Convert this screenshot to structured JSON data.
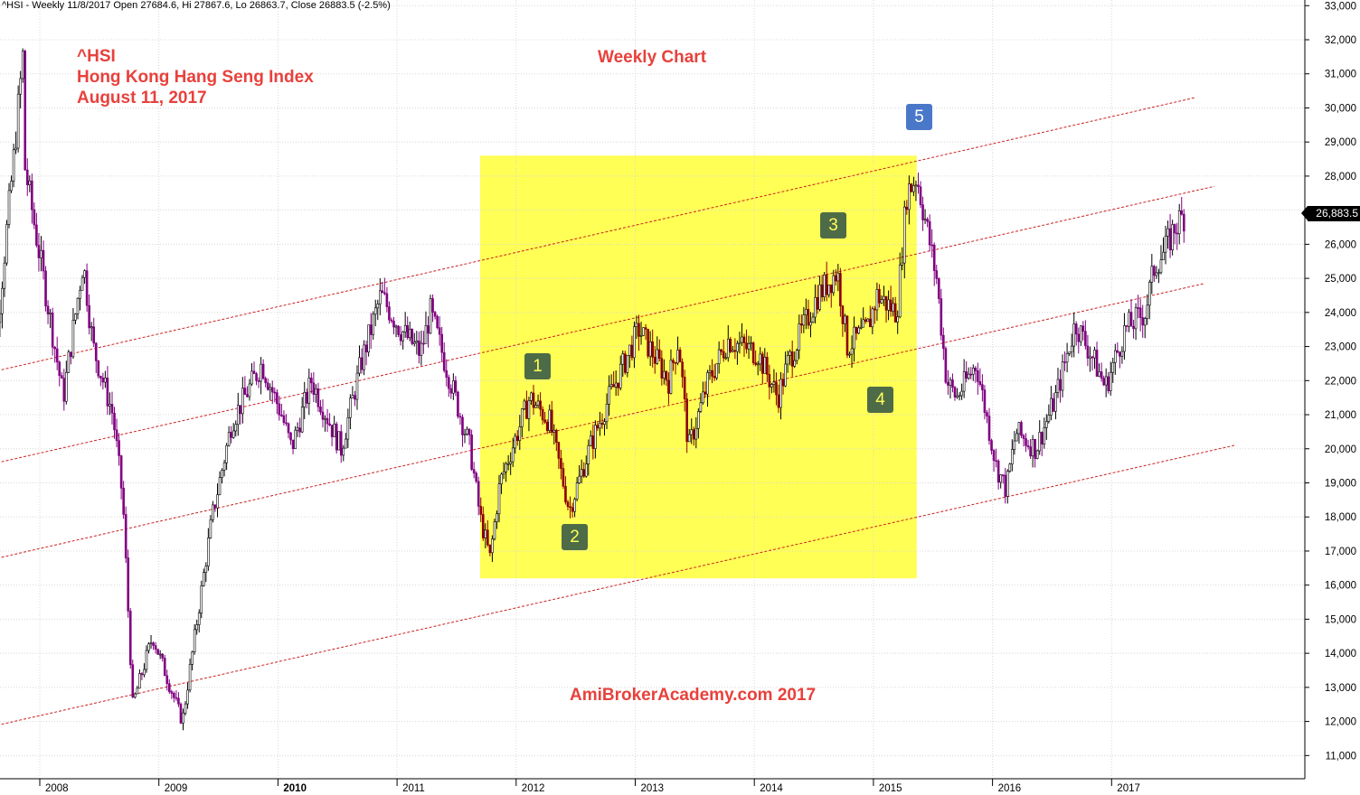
{
  "header": "^HSI - Weekly 11/8/2017 Open 27684.6, Hi 27867.6, Lo 26863.7, Close 26883.5 (-2.5%)",
  "annotations": {
    "ticker": "^HSI",
    "name": "Hong Kong Hang Seng Index",
    "date": "August 11, 2017",
    "chart_type": "Weekly Chart",
    "watermark": "AmiBrokerAcademy.com  2017"
  },
  "wave_labels": [
    "1",
    "2",
    "3",
    "4",
    "5"
  ],
  "last_price_label": "26,883.5",
  "colors": {
    "candle_down": "#800080",
    "candle_down_in_box": "#8b0000",
    "candle_up": "#000000",
    "highlight_box": "#ffff55",
    "channel_lines": "#cc2222",
    "annotation_text": "#e8413c",
    "wave_label_green": "#4e6b48",
    "wave_label_blue": "#4a78c9",
    "grid": "#d8d8d8"
  },
  "chart_data": {
    "type": "candlestick",
    "title": "",
    "xlabel": "",
    "ylabel": "",
    "x_ticks": [
      "2008",
      "2009",
      "2010",
      "2011",
      "2012",
      "2013",
      "2014",
      "2015",
      "2016",
      "2017"
    ],
    "y_ticks": [
      "33,000",
      "32,000",
      "31,000",
      "30,000",
      "29,000",
      "28,000",
      "27,000",
      "26,000",
      "25,000",
      "24,000",
      "23,000",
      "22,000",
      "21,000",
      "20,000",
      "19,000",
      "18,000",
      "17,000",
      "16,000",
      "15,000",
      "14,000",
      "13,000",
      "12,000",
      "11,000"
    ],
    "ylim": [
      10300,
      33000
    ],
    "x_range": [
      "2007-07",
      "2018-04"
    ],
    "grid": true,
    "y_axis_side": "right",
    "close_path": [
      [
        "2007-07",
        23500
      ],
      [
        "2007-08",
        22500
      ],
      [
        "2007-10",
        28500
      ],
      [
        "2007-10-30",
        31600
      ],
      [
        "2007-11",
        28500
      ],
      [
        "2008-01",
        25000
      ],
      [
        "2008-03",
        21500
      ],
      [
        "2008-05",
        25500
      ],
      [
        "2008-06",
        23000
      ],
      [
        "2008-08",
        21000
      ],
      [
        "2008-09",
        18500
      ],
      [
        "2008-10",
        12500
      ],
      [
        "2008-11",
        13500
      ],
      [
        "2008-12",
        14500
      ],
      [
        "2009-03",
        12000
      ],
      [
        "2009-06",
        18000
      ],
      [
        "2009-08",
        20800
      ],
      [
        "2009-11",
        22500
      ],
      [
        "2010-01",
        21000
      ],
      [
        "2010-02",
        20000
      ],
      [
        "2010-04",
        22000
      ],
      [
        "2010-07",
        20000
      ],
      [
        "2010-09",
        22500
      ],
      [
        "2010-11",
        24500
      ],
      [
        "2011-01",
        23500
      ],
      [
        "2011-03",
        22800
      ],
      [
        "2011-04",
        24000
      ],
      [
        "2011-06",
        22000
      ],
      [
        "2011-08",
        20000
      ],
      [
        "2011-09",
        18000
      ],
      [
        "2011-10",
        16800
      ],
      [
        "2011-11",
        19000
      ],
      [
        "2012-02",
        21500
      ],
      [
        "2012-04",
        20800
      ],
      [
        "2012-06",
        18200
      ],
      [
        "2012-08",
        20000
      ],
      [
        "2012-10",
        21500
      ],
      [
        "2013-01",
        23500
      ],
      [
        "2013-04",
        22000
      ],
      [
        "2013-05",
        23200
      ],
      [
        "2013-06",
        20000
      ],
      [
        "2013-08",
        22000
      ],
      [
        "2013-10",
        23200
      ],
      [
        "2014-01",
        22800
      ],
      [
        "2014-03",
        21500
      ],
      [
        "2014-04",
        22500
      ],
      [
        "2014-07",
        24500
      ],
      [
        "2014-09",
        25200
      ],
      [
        "2014-10",
        23000
      ],
      [
        "2014-12",
        23500
      ],
      [
        "2015-01",
        24500
      ],
      [
        "2015-03",
        24000
      ],
      [
        "2015-04",
        27500
      ],
      [
        "2015-05",
        28000
      ],
      [
        "2015-07",
        25000
      ],
      [
        "2015-08",
        22000
      ],
      [
        "2015-09",
        21500
      ],
      [
        "2015-11",
        22500
      ],
      [
        "2016-01",
        19500
      ],
      [
        "2016-02",
        18800
      ],
      [
        "2016-03",
        20500
      ],
      [
        "2016-05",
        20000
      ],
      [
        "2016-07",
        21500
      ],
      [
        "2016-09",
        23700
      ],
      [
        "2016-11",
        22500
      ],
      [
        "2016-12",
        21800
      ],
      [
        "2017-02",
        23500
      ],
      [
        "2017-04",
        24000
      ],
      [
        "2017-05",
        25400
      ],
      [
        "2017-06",
        25800
      ],
      [
        "2017-07",
        26500
      ],
      [
        "2017-08",
        26883
      ]
    ],
    "channel_lines": [
      {
        "from": [
          "2007-07",
          22200
        ],
        "to": [
          "2017-09",
          30300
        ]
      },
      {
        "from": [
          "2007-07",
          19500
        ],
        "to": [
          "2017-11",
          27700
        ]
      },
      {
        "from": [
          "2007-07",
          16700
        ],
        "to": [
          "2017-10",
          24850
        ]
      },
      {
        "from": [
          "2007-07",
          11800
        ],
        "to": [
          "2018-01",
          20100
        ]
      }
    ],
    "highlight_range": {
      "x": [
        "2011-09",
        "2015-05"
      ],
      "y": [
        16200,
        28600
      ]
    },
    "wave_points": [
      {
        "label": "1",
        "x": "2012-03",
        "y": 22450,
        "color": "green"
      },
      {
        "label": "2",
        "x": "2012-06",
        "y": 17400,
        "color": "green"
      },
      {
        "label": "3",
        "x": "2014-12",
        "y": 26550,
        "color": "green"
      },
      {
        "label": "4",
        "x": "2014-12",
        "y": 21050,
        "color": "green"
      },
      {
        "label": "5",
        "x": "2015-04",
        "y": 30000,
        "color": "blue"
      }
    ]
  }
}
